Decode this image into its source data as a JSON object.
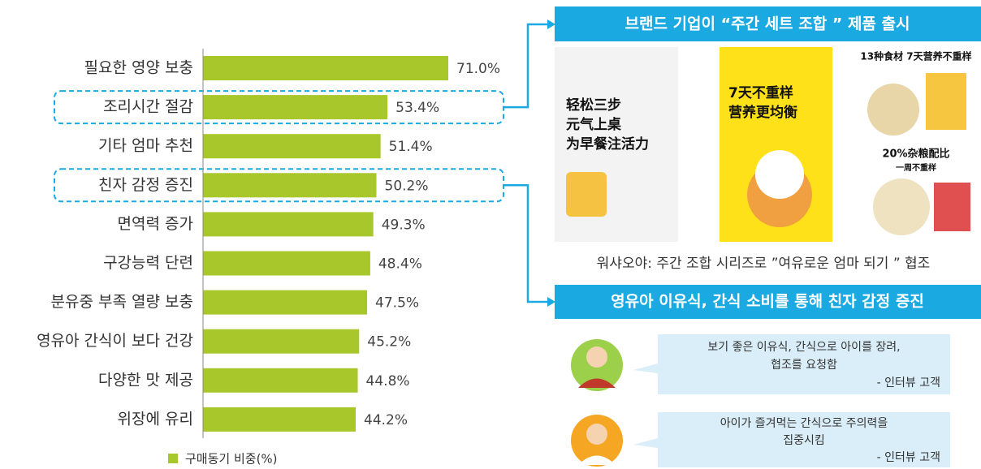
{
  "chart_data": {
    "type": "bar",
    "orientation": "horizontal",
    "categories": [
      "필요한 영양 보충",
      "조리시간 절감",
      "기타 엄마 추천",
      "친자 감정 증진",
      "면역력 증가",
      "구강능력 단련",
      "분유중 부족 열량 보충",
      "영유아 간식이 보다 건강",
      "다양한 맛 제공",
      "위장에 유리"
    ],
    "values": [
      71.0,
      53.4,
      51.4,
      50.2,
      49.3,
      48.4,
      47.5,
      45.2,
      44.8,
      44.2
    ],
    "value_labels": [
      "71.0%",
      "53.4%",
      "51.4%",
      "50.2%",
      "49.3%",
      "48.4%",
      "47.5%",
      "45.2%",
      "44.8%",
      "44.2%"
    ],
    "series_name": "구매동기 비중(%)",
    "color": "#a8c72a",
    "highlight": [
      1,
      3
    ]
  },
  "panel1": {
    "header": "브랜드 기업이 “주간 세트 조합 ” 제품 출시",
    "images": [
      {
        "text": [
          "轻松三步",
          "元气上桌",
          "为早餐注活力"
        ]
      },
      {
        "text": [
          "7天不重样",
          "营养更均衡"
        ]
      },
      {
        "text": [
          "13种食材 7天营养不重样",
          "20%杂粮配比",
          "一周不重样"
        ]
      }
    ],
    "caption": "워샤오야: 주간 조합 시리즈로 ”여유로운 엄마 되기 ” 협조"
  },
  "panel2": {
    "header": "영유아 이유식, 간식 소비를 통해 친자 감정 증진",
    "quotes": [
      {
        "lines": [
          "보기 좋은 이유식, 간식으로 아이를 장려,",
          "협조를 요청함"
        ],
        "source": "- 인터뷰 고객"
      },
      {
        "lines": [
          "아이가 즐겨먹는 간식으로 주의력을",
          "집중시킴"
        ],
        "source": "- 인터뷰 고객"
      }
    ]
  }
}
